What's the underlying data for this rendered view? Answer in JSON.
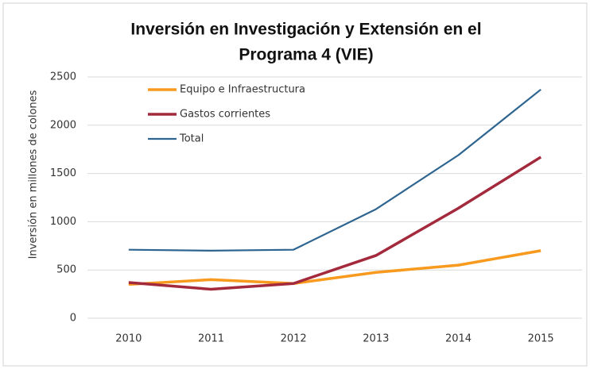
{
  "chart_data": {
    "type": "line",
    "title": [
      "Inversión en Investigación y Extensión en el",
      "Programa 4 (VIE)"
    ],
    "y_label": "Inversión en millones de colones",
    "categories": [
      "2010",
      "2011",
      "2012",
      "2013",
      "2014",
      "2015"
    ],
    "series": [
      {
        "name": "Equipo e Infraestructura",
        "color": "#f79a1e",
        "values": [
          350,
          400,
          360,
          475,
          550,
          700
        ]
      },
      {
        "name": "Gastos corrientes",
        "color": "#a32a3c",
        "values": [
          370,
          300,
          360,
          650,
          1140,
          1670
        ]
      },
      {
        "name": "Total",
        "color": "#2e6590",
        "values": [
          710,
          700,
          710,
          1130,
          1690,
          2370
        ]
      }
    ],
    "ylim": [
      0,
      2500
    ],
    "yticks": [
      0,
      500,
      1000,
      1500,
      2000,
      2500
    ],
    "grid": true,
    "legend": "top-left"
  }
}
